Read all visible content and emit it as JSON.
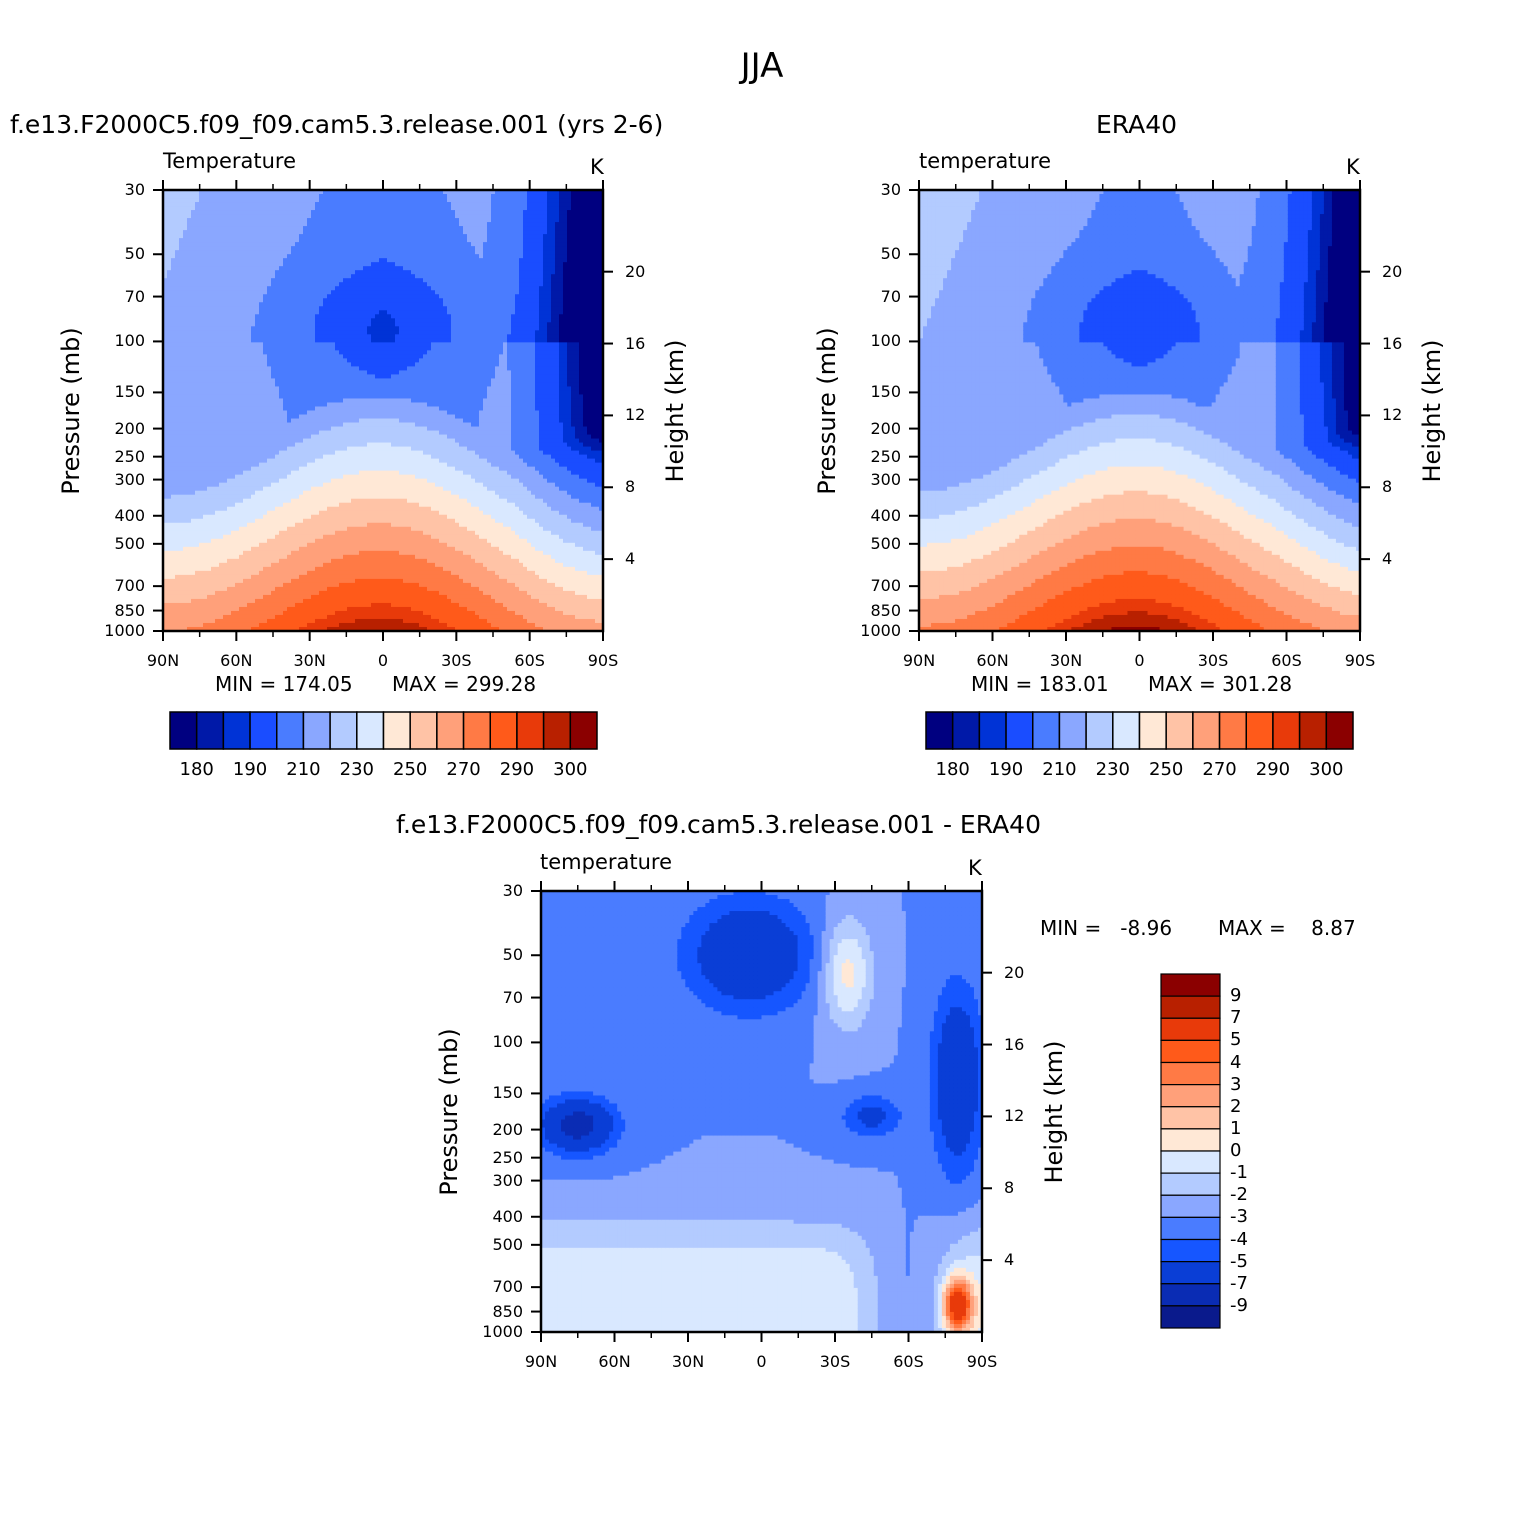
{
  "title": "JJA",
  "colors": {
    "model_palette": [
      "#000080",
      "#0019a8",
      "#0033d6",
      "#1a4dff",
      "#4a7cff",
      "#8aa7ff",
      "#b3cbff",
      "#d9e8ff",
      "#ffe8d6",
      "#ffc3a6",
      "#ffa07a",
      "#ff7a45",
      "#ff5a1a",
      "#e83a0a",
      "#b82000",
      "#8b0000"
    ],
    "diff_palette": [
      "#0a1a8c",
      "#0a2cb4",
      "#0a3ed6",
      "#1656ff",
      "#4a7cff",
      "#8aa7ff",
      "#b3cbff",
      "#d9e8ff",
      "#ffe8d6",
      "#ffc3a6",
      "#ffa07a",
      "#ff7a45",
      "#ff5a1a",
      "#e83a0a",
      "#b82000",
      "#8b0000"
    ]
  },
  "chart_data": [
    {
      "type": "heatmap",
      "title": "f.e13.F2000C5.f09_f09.cam5.3.release.001 (yrs 2-6)",
      "variable": "Temperature",
      "units": "K",
      "xlabel": "",
      "ylabel": "Pressure (mb)",
      "y2label": "Height (km)",
      "x_ticks": [
        "90N",
        "60N",
        "30N",
        "0",
        "30S",
        "60S",
        "90S"
      ],
      "y_ticks": [
        "30",
        "50",
        "70",
        "100",
        "150",
        "200",
        "250",
        "300",
        "400",
        "500",
        "700",
        "850",
        "1000"
      ],
      "y2_ticks": [
        "20",
        "16",
        "12",
        "8",
        "4"
      ],
      "min_text": "MIN = 174.05",
      "max_text": "MAX = 299.28",
      "colorbar_labels": [
        "180",
        "190",
        "210",
        "230",
        "250",
        "270",
        "290",
        "300"
      ]
    },
    {
      "type": "heatmap",
      "title": "ERA40",
      "variable": "temperature",
      "units": "K",
      "xlabel": "",
      "ylabel": "Pressure (mb)",
      "y2label": "Height (km)",
      "x_ticks": [
        "90N",
        "60N",
        "30N",
        "0",
        "30S",
        "60S",
        "90S"
      ],
      "y_ticks": [
        "30",
        "50",
        "70",
        "100",
        "150",
        "200",
        "250",
        "300",
        "400",
        "500",
        "700",
        "850",
        "1000"
      ],
      "y2_ticks": [
        "20",
        "16",
        "12",
        "8",
        "4"
      ],
      "min_text": "MIN = 183.01",
      "max_text": "MAX = 301.28",
      "colorbar_labels": [
        "180",
        "190",
        "210",
        "230",
        "250",
        "270",
        "290",
        "300"
      ]
    },
    {
      "type": "heatmap",
      "title": "f.e13.F2000C5.f09_f09.cam5.3.release.001 - ERA40",
      "variable": "temperature",
      "units": "K",
      "xlabel": "",
      "ylabel": "Pressure (mb)",
      "y2label": "Height (km)",
      "x_ticks": [
        "90N",
        "60N",
        "30N",
        "0",
        "30S",
        "60S",
        "90S"
      ],
      "y_ticks": [
        "30",
        "50",
        "70",
        "100",
        "150",
        "200",
        "250",
        "300",
        "400",
        "500",
        "700",
        "850",
        "1000"
      ],
      "y2_ticks": [
        "20",
        "16",
        "12",
        "8",
        "4"
      ],
      "min_text": "MIN =   -8.96",
      "max_text": "MAX =    8.87",
      "colorbar_labels": [
        "9",
        "7",
        "5",
        "4",
        "3",
        "2",
        "1",
        "0",
        "-1",
        "-2",
        "-3",
        "-4",
        "-5",
        "-7",
        "-9"
      ]
    }
  ]
}
